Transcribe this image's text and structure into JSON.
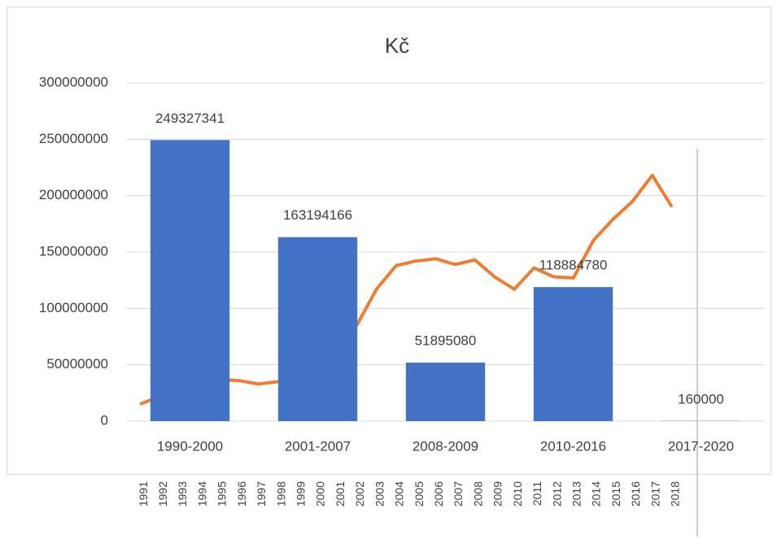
{
  "chart_data": [
    {
      "type": "bar",
      "title": "Kč",
      "categories": [
        "1990-2000",
        "2001-2007",
        "2008-2009",
        "2010-2016",
        "2017-2020"
      ],
      "values": [
        249327341,
        163194166,
        51895080,
        118884780,
        160000
      ],
      "color": "#4472c4",
      "ylim": [
        0,
        300000000
      ],
      "yticks": [
        0,
        50000000,
        100000000,
        150000000,
        200000000,
        250000000,
        300000000
      ],
      "grid": true
    },
    {
      "type": "line",
      "categories": [
        1991,
        1992,
        1993,
        1994,
        1995,
        1996,
        1997,
        1998,
        1999,
        2000,
        2001,
        2002,
        2003,
        2004,
        2005,
        2006,
        2007,
        2008,
        2009,
        2010,
        2011,
        2012,
        2013,
        2014,
        2015,
        2016,
        2017,
        2018
      ],
      "values": [
        15000000,
        22000000,
        23000000,
        28000000,
        37000000,
        36000000,
        33000000,
        35000000,
        42000000,
        95000000,
        128000000,
        85000000,
        117000000,
        138000000,
        142000000,
        144000000,
        139000000,
        143000000,
        128000000,
        117000000,
        136000000,
        128000000,
        127000000,
        160000000,
        179000000,
        195000000,
        218000000,
        190000000
      ],
      "color": "#ed7d31",
      "ylim": [
        0,
        300000000
      ]
    }
  ]
}
